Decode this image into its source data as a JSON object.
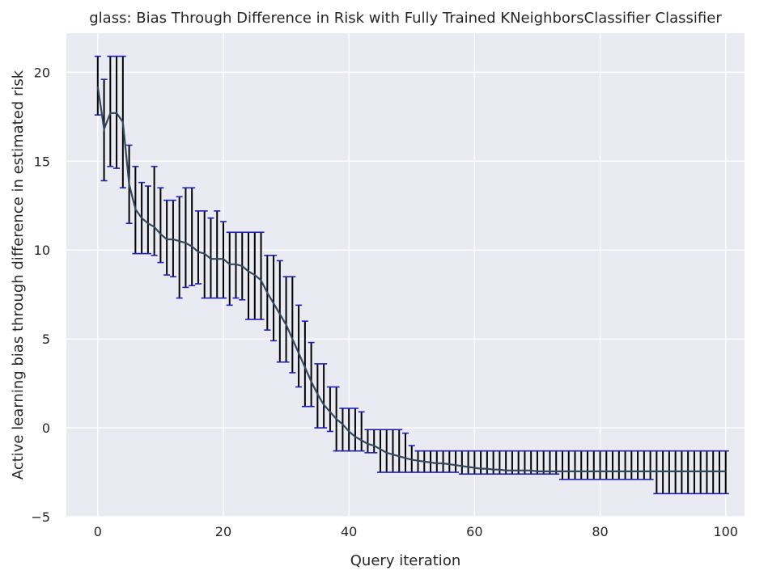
{
  "chart_data": {
    "type": "line",
    "title": "glass: Bias Through Difference in Risk with Fully Trained KNeighborsClassifier Classifier",
    "xlabel": "Query iteration",
    "ylabel": "Active learning bias through difference in estimated risk",
    "xlim": [
      -5,
      103
    ],
    "ylim": [
      -5,
      22.2
    ],
    "xticks": [
      0,
      20,
      40,
      60,
      80,
      100
    ],
    "yticks": [
      -5,
      0,
      5,
      10,
      15,
      20
    ],
    "grid": true,
    "colors": {
      "background": "#eaeaf2",
      "grid": "#ffffff",
      "line": "#34495e",
      "errorbar": "#000000",
      "cap": "#1f1fb4"
    },
    "x": [
      0,
      1,
      2,
      3,
      4,
      5,
      6,
      7,
      8,
      9,
      10,
      11,
      12,
      13,
      14,
      15,
      16,
      17,
      18,
      19,
      20,
      21,
      22,
      23,
      24,
      25,
      26,
      27,
      28,
      29,
      30,
      31,
      32,
      33,
      34,
      35,
      36,
      37,
      38,
      39,
      40,
      41,
      42,
      43,
      44,
      45,
      46,
      47,
      48,
      49,
      50,
      51,
      52,
      53,
      54,
      55,
      56,
      57,
      58,
      59,
      60,
      61,
      62,
      63,
      64,
      65,
      66,
      67,
      68,
      69,
      70,
      71,
      72,
      73,
      74,
      75,
      76,
      77,
      78,
      79,
      80,
      81,
      82,
      83,
      84,
      85,
      86,
      87,
      88,
      89,
      90,
      91,
      92,
      93,
      94,
      95,
      96,
      97,
      98,
      99,
      100
    ],
    "series": [
      {
        "y": [
          19.2,
          16.8,
          17.7,
          17.7,
          17.2,
          13.7,
          12.3,
          11.8,
          11.5,
          11.3,
          10.9,
          10.6,
          10.6,
          10.5,
          10.4,
          10.2,
          9.9,
          9.8,
          9.5,
          9.5,
          9.5,
          9.2,
          9.2,
          9.1,
          8.8,
          8.6,
          8.3,
          7.6,
          7.0,
          6.4,
          5.8,
          5.0,
          4.2,
          3.4,
          2.6,
          1.9,
          1.3,
          0.9,
          0.5,
          0.2,
          -0.2,
          -0.5,
          -0.7,
          -0.9,
          -1.0,
          -1.2,
          -1.4,
          -1.5,
          -1.6,
          -1.7,
          -1.8,
          -1.85,
          -1.9,
          -1.95,
          -2.0,
          -2.0,
          -2.05,
          -2.1,
          -2.15,
          -2.2,
          -2.25,
          -2.3,
          -2.3,
          -2.35,
          -2.35,
          -2.4,
          -2.4,
          -2.4,
          -2.4,
          -2.4,
          -2.45,
          -2.45,
          -2.45,
          -2.45,
          -2.45,
          -2.45,
          -2.45,
          -2.45,
          -2.45,
          -2.45,
          -2.45,
          -2.45,
          -2.45,
          -2.45,
          -2.45,
          -2.45,
          -2.45,
          -2.45,
          -2.45,
          -2.45,
          -2.45,
          -2.45,
          -2.45,
          -2.45,
          -2.45,
          -2.45,
          -2.45,
          -2.45,
          -2.45,
          -2.45,
          -2.45
        ],
        "lower": [
          17.6,
          13.9,
          14.7,
          14.6,
          13.5,
          11.5,
          9.8,
          9.8,
          9.8,
          9.7,
          9.3,
          8.6,
          8.5,
          7.3,
          7.9,
          8.0,
          8.1,
          7.3,
          7.3,
          7.3,
          7.3,
          6.9,
          7.3,
          7.2,
          6.1,
          6.1,
          6.1,
          5.5,
          4.9,
          3.7,
          3.7,
          3.1,
          2.3,
          1.2,
          1.2,
          0.0,
          0.0,
          -0.2,
          -1.3,
          -1.3,
          -1.3,
          -1.3,
          -1.3,
          -1.4,
          -1.4,
          -2.5,
          -2.5,
          -2.5,
          -2.5,
          -2.5,
          -2.5,
          -2.5,
          -2.5,
          -2.5,
          -2.5,
          -2.5,
          -2.5,
          -2.5,
          -2.6,
          -2.6,
          -2.6,
          -2.6,
          -2.6,
          -2.6,
          -2.6,
          -2.6,
          -2.6,
          -2.6,
          -2.6,
          -2.6,
          -2.6,
          -2.6,
          -2.6,
          -2.6,
          -2.9,
          -2.9,
          -2.9,
          -2.9,
          -2.9,
          -2.9,
          -2.9,
          -2.9,
          -2.9,
          -2.9,
          -2.9,
          -2.9,
          -2.9,
          -2.9,
          -2.9,
          -3.7,
          -3.7,
          -3.7,
          -3.7,
          -3.7,
          -3.7,
          -3.7,
          -3.7,
          -3.7,
          -3.7,
          -3.7,
          -3.7
        ],
        "upper": [
          20.9,
          19.6,
          20.9,
          20.9,
          20.9,
          15.9,
          14.7,
          13.8,
          13.6,
          14.7,
          13.5,
          12.8,
          12.8,
          13.0,
          13.5,
          13.5,
          12.2,
          12.2,
          11.8,
          12.2,
          11.6,
          11.0,
          11.0,
          11.0,
          11.0,
          11.0,
          11.0,
          9.7,
          9.7,
          9.4,
          8.5,
          8.5,
          6.9,
          6.0,
          4.8,
          3.6,
          3.6,
          2.3,
          2.3,
          1.1,
          1.1,
          1.1,
          0.9,
          -0.1,
          -0.1,
          -0.1,
          -0.1,
          -0.1,
          -0.1,
          -0.3,
          -1.0,
          -1.3,
          -1.3,
          -1.3,
          -1.3,
          -1.3,
          -1.3,
          -1.3,
          -1.3,
          -1.3,
          -1.3,
          -1.3,
          -1.3,
          -1.3,
          -1.3,
          -1.3,
          -1.3,
          -1.3,
          -1.3,
          -1.3,
          -1.3,
          -1.3,
          -1.3,
          -1.3,
          -1.3,
          -1.3,
          -1.3,
          -1.3,
          -1.3,
          -1.3,
          -1.3,
          -1.3,
          -1.3,
          -1.3,
          -1.3,
          -1.3,
          -1.3,
          -1.3,
          -1.3,
          -1.3,
          -1.3,
          -1.3,
          -1.3,
          -1.3,
          -1.3,
          -1.3,
          -1.3,
          -1.3,
          -1.3,
          -1.3,
          -1.3
        ]
      }
    ]
  }
}
